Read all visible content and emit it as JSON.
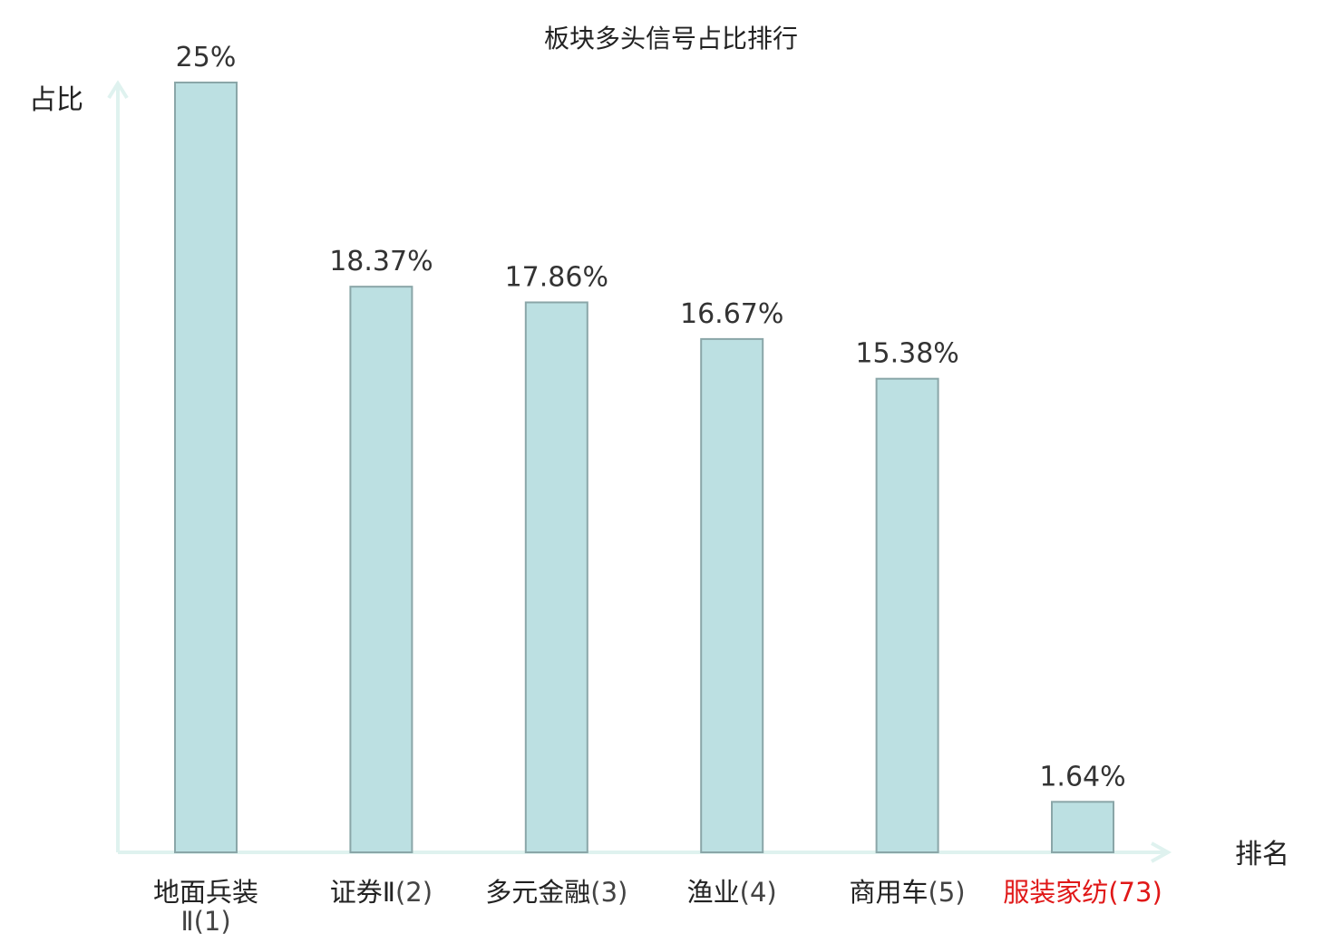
{
  "chart_data": {
    "type": "bar",
    "title": "板块多头信号占比排行",
    "ylabel": "占比",
    "xlabel": "排名",
    "ylim": [
      0,
      25
    ],
    "grid": false,
    "legend": "none",
    "categories": [
      {
        "name": "地面兵装Ⅱ",
        "rank": "(1)"
      },
      {
        "name": "证券Ⅱ",
        "rank": "(2)"
      },
      {
        "name": "多元金融",
        "rank": "(3)"
      },
      {
        "name": "渔业",
        "rank": "(4)"
      },
      {
        "name": "商用车",
        "rank": "(5)"
      },
      {
        "name": "服装家纺",
        "rank": "(73)"
      }
    ],
    "values": [
      25,
      18.37,
      17.86,
      16.67,
      15.38,
      1.64
    ],
    "value_labels": [
      "25%",
      "18.37%",
      "17.86%",
      "16.67%",
      "15.38%",
      "1.64%"
    ],
    "highlight_index": 5
  },
  "colors": {
    "bar_fill": "#bce0e2",
    "bar_stroke": "#8aa6a8",
    "axis": "#dff2ef",
    "highlight_text": "#e01818"
  }
}
